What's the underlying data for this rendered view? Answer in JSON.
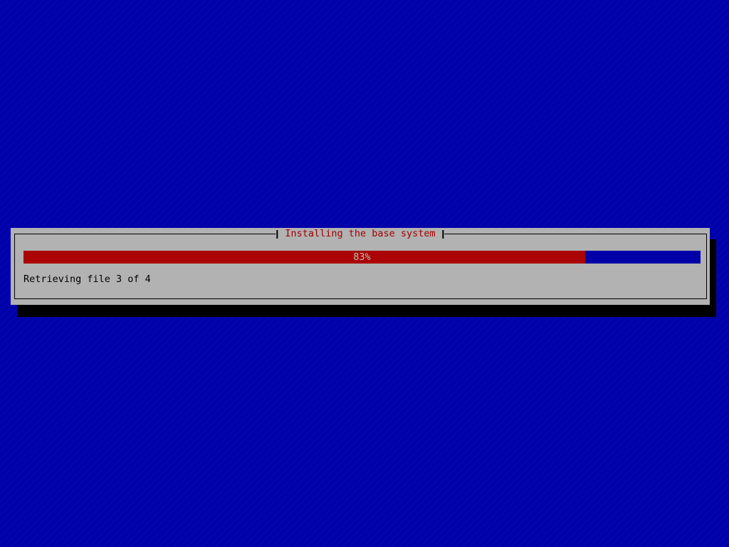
{
  "screen": {
    "background_color": "#0101ad"
  },
  "dialog": {
    "title": "Installing the base system",
    "status_text": "Retrieving file 3 of 4",
    "progress": {
      "percent": 83,
      "label": "83%"
    },
    "colors": {
      "surface": "#b2b2b2",
      "border": "#000000",
      "title_text": "#a00000",
      "progress_fill": "#aa0404",
      "progress_track": "#0000a8",
      "progress_label": "#bebebe",
      "status_text": "#000000",
      "shadow": "#000000"
    }
  }
}
